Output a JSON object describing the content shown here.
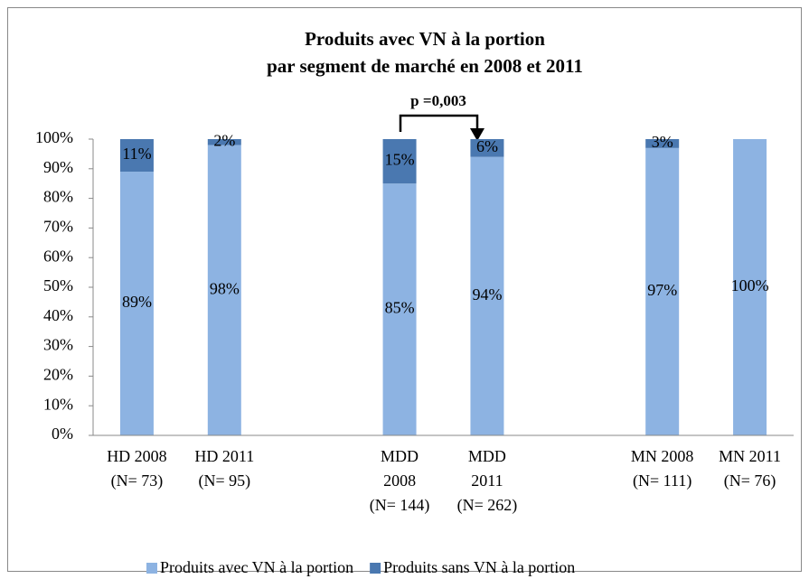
{
  "chart_data": {
    "type": "stacked-bar",
    "title": [
      "Produits avec VN à la portion",
      "par segment de marché en 2008 et 2011"
    ],
    "annotation": "p =0,003",
    "categories": [
      [
        "HD 2008",
        "(N= 73)"
      ],
      [
        "HD 2011",
        "(N= 95)"
      ],
      null,
      [
        "MDD",
        "2008",
        "(N= 144)"
      ],
      [
        "MDD",
        "2011",
        "(N= 262)"
      ],
      null,
      [
        "MN 2008",
        "(N= 111)"
      ],
      [
        "MN 2011",
        "(N= 76)"
      ]
    ],
    "series": [
      {
        "name": "Produits avec VN à la portion",
        "color": "#8db3e2",
        "values": [
          89,
          98,
          null,
          85,
          94,
          null,
          97,
          100
        ],
        "value_labels": [
          "89%",
          "98%",
          null,
          "85%",
          "94%",
          null,
          "97%",
          "100%"
        ]
      },
      {
        "name": "Produits sans VN à la portion",
        "color": "#4a78b0",
        "values": [
          11,
          2,
          null,
          15,
          6,
          null,
          3,
          null
        ],
        "value_labels": [
          "11%",
          "2%",
          null,
          "15%",
          "6%",
          null,
          "3%",
          null
        ]
      }
    ],
    "ylim": [
      0,
      100
    ],
    "yticks": [
      {
        "value": 0,
        "label": "0%"
      },
      {
        "value": 10,
        "label": "10%"
      },
      {
        "value": 20,
        "label": "20%"
      },
      {
        "value": 30,
        "label": "30%"
      },
      {
        "value": 40,
        "label": "40%"
      },
      {
        "value": 50,
        "label": "50%"
      },
      {
        "value": 60,
        "label": "60%"
      },
      {
        "value": 70,
        "label": "70%"
      },
      {
        "value": 80,
        "label": "80%"
      },
      {
        "value": 90,
        "label": "90%"
      },
      {
        "value": 100,
        "label": "100%"
      }
    ],
    "legend": "bottom"
  }
}
